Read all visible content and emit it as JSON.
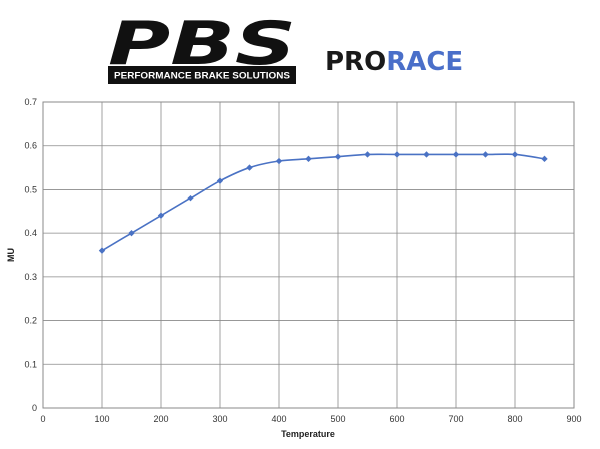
{
  "logo": {
    "brand": "PBS",
    "tagline": "PERFORMANCE BRAKE SOLUTIONS",
    "product_prefix": "PRO",
    "product_suffix": "RACE",
    "colors": {
      "brand": "#111111",
      "product_prefix": "#1a1a1a",
      "product_suffix": "#4a6fc9"
    }
  },
  "chart_data": {
    "type": "line",
    "xlabel": "Temperature",
    "ylabel": "MU",
    "xlim": [
      0,
      900
    ],
    "ylim": [
      0,
      0.7
    ],
    "x_ticks": [
      0,
      100,
      200,
      300,
      400,
      500,
      600,
      700,
      800,
      900
    ],
    "y_ticks": [
      0,
      0.1,
      0.2,
      0.3,
      0.4,
      0.5,
      0.6,
      0.7
    ],
    "x_tick_labels": [
      "0",
      "100",
      "200",
      "300",
      "400",
      "500",
      "600",
      "700",
      "800",
      "900"
    ],
    "y_tick_labels": [
      "0",
      "0.1",
      "0.2",
      "0.3",
      "0.4",
      "0.5",
      "0.6",
      "0.7"
    ],
    "grid": true,
    "legend": false,
    "series": [
      {
        "color": "#4a72c4",
        "marker": "diamond",
        "smooth": true,
        "x": [
          100,
          150,
          200,
          250,
          300,
          350,
          400,
          450,
          500,
          550,
          600,
          650,
          700,
          750,
          800,
          850
        ],
        "y": [
          0.36,
          0.4,
          0.44,
          0.48,
          0.52,
          0.55,
          0.565,
          0.57,
          0.575,
          0.58,
          0.58,
          0.58,
          0.58,
          0.58,
          0.58,
          0.57
        ]
      }
    ]
  }
}
